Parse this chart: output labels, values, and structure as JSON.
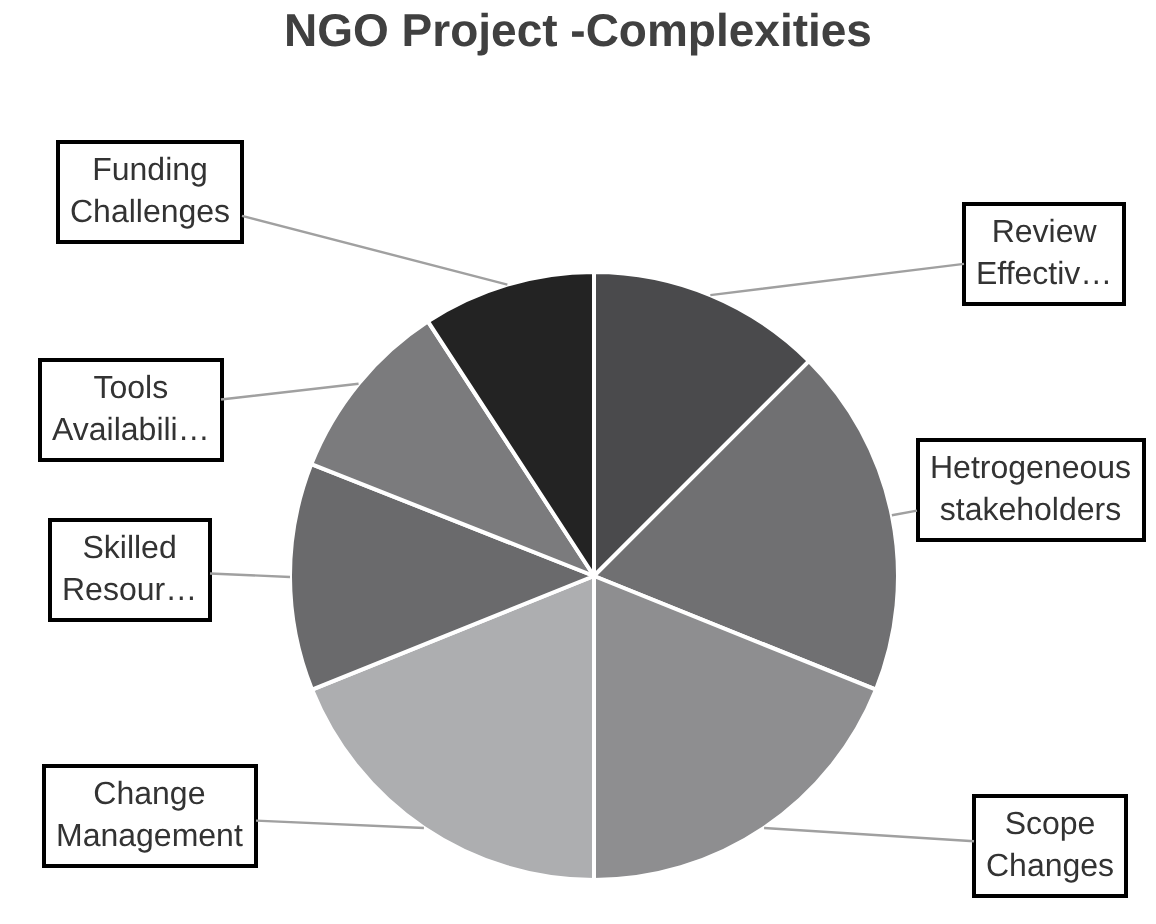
{
  "chart_data": {
    "type": "pie",
    "title": "NGO Project -Complexities",
    "categories": [
      "Review Effectiv…",
      "Hetrogeneous stakeholders",
      "Scope Changes",
      "Change Management",
      "Skilled Resour…",
      "Tools Availabili…",
      "Funding Challenges"
    ],
    "values": [
      12.5,
      18.6,
      18.9,
      18.9,
      12.1,
      9.8,
      9.2
    ],
    "colors": [
      "#4a4a4c",
      "#707072",
      "#8e8e90",
      "#adaeb0",
      "#6a6a6c",
      "#7b7b7d",
      "#232323"
    ],
    "legend": false
  }
}
